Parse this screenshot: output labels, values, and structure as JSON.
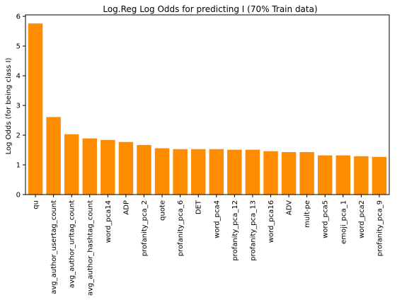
{
  "chart_data": {
    "type": "bar",
    "title": "Log.Reg Log Odds for predicting I (70% Train data)",
    "xlabel": "",
    "ylabel": "Log Odds (for being class I)",
    "ylim": [
      0,
      6.05
    ],
    "yticks": [
      0,
      1,
      2,
      3,
      4,
      5,
      6
    ],
    "bar_color": "#ff8c00",
    "grid": false,
    "categories": [
      "qu",
      "avg_author_usertag_count",
      "avg_author_urltag_count",
      "avg_author_hashtag_count",
      "word_pca14",
      "ADP",
      "profanity_pca_2",
      "quote",
      "profanity_pca_6",
      "DET",
      "word_pca4",
      "profanity_pca_12",
      "profanity_pca_13",
      "word_pca16",
      "ADV",
      "mult-pe",
      "word_pca5",
      "emoji_pca_1",
      "word_pca2",
      "profanity_pca_9"
    ],
    "values": [
      5.76,
      2.61,
      2.03,
      1.89,
      1.84,
      1.77,
      1.67,
      1.56,
      1.53,
      1.53,
      1.53,
      1.51,
      1.51,
      1.46,
      1.43,
      1.43,
      1.32,
      1.32,
      1.29,
      1.27
    ]
  }
}
